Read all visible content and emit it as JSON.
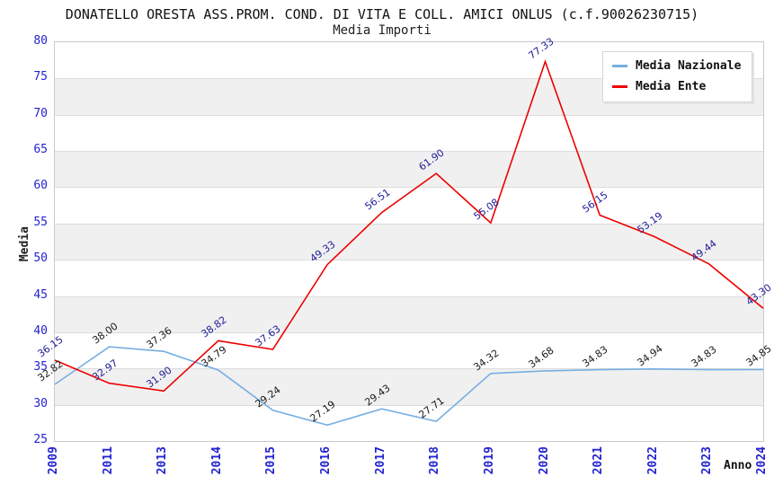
{
  "header": {
    "title": "DONATELLO ORESTA ASS.PROM. COND. DI VITA E COLL. AMICI ONLUS (c.f.90026230715)",
    "subtitle": "Media Importi"
  },
  "legend": {
    "position": "top-right",
    "items": [
      {
        "label": "Media Nazionale",
        "color": "#76aee2"
      },
      {
        "label": "Media Ente",
        "color": "#ee0000"
      }
    ]
  },
  "chart_data": {
    "type": "line",
    "title": "DONATELLO ORESTA ASS.PROM. COND. DI VITA E COLL. AMICI ONLUS (c.f.90026230715)",
    "subtitle": "Media Importi",
    "xlabel": "Anno",
    "ylabel": "Media",
    "categories": [
      "2009",
      "2011",
      "2013",
      "2014",
      "2015",
      "2016",
      "2017",
      "2018",
      "2019",
      "2020",
      "2021",
      "2022",
      "2023",
      "2024"
    ],
    "series": [
      {
        "name": "Media Nazionale",
        "color": "#76aee2",
        "label_color": "#1a1a1a",
        "values": [
          32.82,
          38.0,
          37.36,
          34.79,
          29.24,
          27.19,
          29.43,
          27.71,
          34.32,
          34.68,
          34.83,
          34.94,
          34.83,
          34.85
        ]
      },
      {
        "name": "Media Ente",
        "color": "#ee0000",
        "label_color": "#20209b",
        "values": [
          36.15,
          32.97,
          31.9,
          38.82,
          37.63,
          49.33,
          56.51,
          61.9,
          55.08,
          77.33,
          56.15,
          53.19,
          49.44,
          43.3
        ]
      }
    ],
    "ylim": [
      25,
      80
    ],
    "ytick_step": 5,
    "grid": "horizontal gridlines with alternating shaded bands",
    "band_color": "#f0f0f0",
    "gridline_color": "#dcdcdc",
    "axis_tick_color": "#2323cf",
    "legend_position": "top-right"
  }
}
